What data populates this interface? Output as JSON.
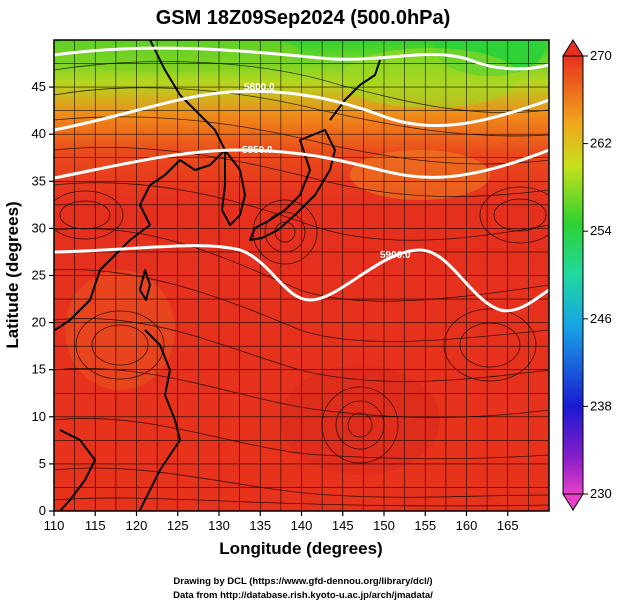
{
  "title": "GSM 18Z09Sep2024 (500.0hPa)",
  "x_axis": {
    "label": "Longitude (degrees)",
    "range": [
      110,
      170
    ],
    "ticks": [
      "110",
      "115",
      "120",
      "125",
      "130",
      "135",
      "140",
      "145",
      "150",
      "155",
      "160",
      "165"
    ]
  },
  "y_axis": {
    "label": "Latitude  (degrees)",
    "range": [
      0,
      50
    ],
    "ticks": [
      "0",
      "5",
      "10",
      "15",
      "20",
      "25",
      "30",
      "35",
      "40",
      "45"
    ]
  },
  "colorbar": {
    "range": [
      230,
      270
    ],
    "ticks": [
      "230",
      "238",
      "246",
      "254",
      "262",
      "270"
    ]
  },
  "contours": {
    "labels": [
      "5800.0",
      "5850.0",
      "5900.0"
    ]
  },
  "credits": {
    "line1": "Drawing by DCL (https://www.gfd-dennou.org/library/dcl/)",
    "line2": "Data from http://database.rish.kyoto-u.ac.jp/arch/jmadata/"
  },
  "colors": {
    "warm": "#e8301e",
    "orange": "#f07a18",
    "yellow": "#f2d21a",
    "green": "#2fd22f",
    "contour": "#ffffff",
    "streamline": "#000000"
  }
}
